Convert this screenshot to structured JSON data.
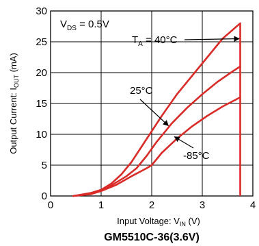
{
  "chart_data": {
    "type": "line",
    "title": "GM5510C-36(3.6V)",
    "xlabel": {
      "main": "Input Voltage: V",
      "sub": "IN",
      "unit": " (V)"
    },
    "ylabel": {
      "main": "Output Current: I",
      "sub": "OUT",
      "unit": " (mA)"
    },
    "xlim": [
      0,
      4
    ],
    "ylim": [
      0,
      30
    ],
    "xticks": [
      "0",
      "1",
      "2",
      "3",
      "4"
    ],
    "yticks": [
      "0",
      "5",
      "10",
      "15",
      "20",
      "25",
      "30"
    ],
    "grid": true,
    "condition": {
      "main": "V",
      "sub": "DS",
      "rest": " = 0.5V"
    },
    "series_color": "#d92b27",
    "series": [
      {
        "name": "T_A = 40°C",
        "x": [
          0.45,
          0.8,
          1.0,
          1.2,
          1.4,
          1.6,
          1.8,
          2.0,
          2.2,
          2.5,
          2.8,
          3.1,
          3.4,
          3.75
        ],
        "y": [
          0,
          0.5,
          1.0,
          2.0,
          3.5,
          5.5,
          8.0,
          10.5,
          13.0,
          16.5,
          19.5,
          22.5,
          25.5,
          28.0
        ]
      },
      {
        "name": "25°C",
        "x": [
          0.45,
          0.8,
          1.0,
          1.2,
          1.5,
          1.7,
          1.9,
          2.1,
          2.4,
          2.7,
          3.0,
          3.3,
          3.6,
          3.75
        ],
        "y": [
          0,
          0.4,
          0.9,
          1.7,
          3.2,
          4.5,
          6.5,
          8.8,
          11.8,
          14.3,
          16.5,
          18.5,
          20.2,
          21.0
        ]
      },
      {
        "name": "-85°C",
        "x": [
          0.45,
          0.8,
          1.0,
          1.3,
          1.6,
          1.9,
          2.0,
          2.2,
          2.5,
          2.8,
          3.1,
          3.4,
          3.75
        ],
        "y": [
          0,
          0.3,
          0.8,
          1.8,
          3.2,
          4.5,
          5.0,
          7.0,
          9.3,
          11.3,
          13.0,
          14.5,
          16.0
        ]
      }
    ],
    "cutoff": {
      "x": 3.75,
      "y_from": 0,
      "y_to": 28.0
    },
    "annotations": [
      {
        "label_main": "T",
        "label_sub": "A",
        "label_rest": " = 40°C",
        "series": 0,
        "point_x": 3.73,
        "point_y": 25.5
      },
      {
        "label_main": "25°C",
        "series": 1,
        "point_x": 2.33,
        "point_y": 11.4
      },
      {
        "label_main": "-85°C",
        "series": 2,
        "point_x": 2.45,
        "point_y": 9.6
      }
    ]
  }
}
